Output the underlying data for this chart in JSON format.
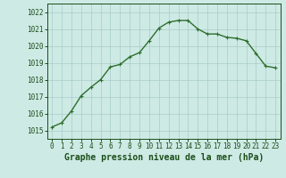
{
  "x": [
    0,
    1,
    2,
    3,
    4,
    5,
    6,
    7,
    8,
    9,
    10,
    11,
    12,
    13,
    14,
    15,
    16,
    17,
    18,
    19,
    20,
    21,
    22,
    23
  ],
  "y": [
    1015.2,
    1015.45,
    1016.15,
    1017.05,
    1017.55,
    1018.0,
    1018.75,
    1018.9,
    1019.35,
    1019.6,
    1020.3,
    1021.05,
    1021.4,
    1021.5,
    1021.5,
    1021.0,
    1020.7,
    1020.7,
    1020.5,
    1020.45,
    1020.3,
    1019.55,
    1018.8,
    1018.7
  ],
  "line_color": "#2d6e2d",
  "marker": "+",
  "marker_size": 3,
  "marker_linewidth": 0.8,
  "bg_color": "#ceeae4",
  "grid_color": "#a8ccca",
  "xlabel": "Graphe pression niveau de la mer (hPa)",
  "xlabel_fontsize": 7,
  "xlabel_color": "#1a4d1a",
  "tick_color": "#1a4d1a",
  "tick_fontsize": 5.5,
  "ylim": [
    1014.5,
    1022.5
  ],
  "yticks": [
    1015,
    1016,
    1017,
    1018,
    1019,
    1020,
    1021,
    1022
  ],
  "xlim": [
    -0.5,
    23.5
  ],
  "xticks": [
    0,
    1,
    2,
    3,
    4,
    5,
    6,
    7,
    8,
    9,
    10,
    11,
    12,
    13,
    14,
    15,
    16,
    17,
    18,
    19,
    20,
    21,
    22,
    23
  ],
  "line_width": 1.0
}
